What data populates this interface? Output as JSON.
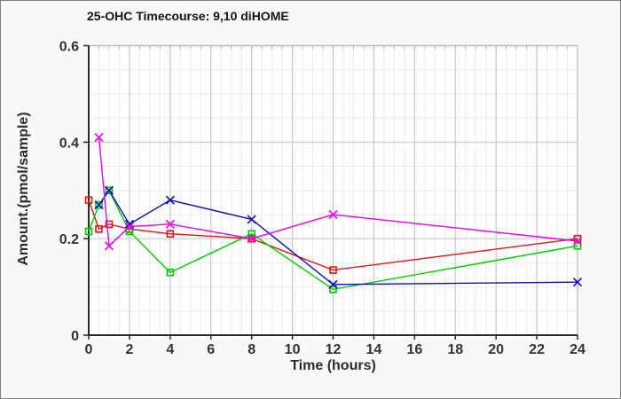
{
  "title": "25-OHC Timecourse: 9,10 diHOME",
  "chart_data": {
    "type": "line",
    "title": "25-OHC Timecourse: 9,10 diHOME",
    "xlabel": "Time (hours)",
    "ylabel": "Amount.(pmol/sample)",
    "xlim": [
      0,
      24
    ],
    "ylim": [
      0,
      0.6
    ],
    "x_tick_values": [
      0,
      2,
      4,
      6,
      8,
      10,
      12,
      14,
      16,
      18,
      20,
      22,
      24
    ],
    "x_tick_labels": [
      "0",
      "2",
      "4",
      "6",
      "8",
      "10",
      "12",
      "14",
      "16",
      "18",
      "20",
      "22",
      "24"
    ],
    "y_tick_values": [
      0,
      0.2,
      0.4,
      0.6
    ],
    "y_tick_labels": [
      "0",
      "0.2",
      "0.4",
      "0.6"
    ],
    "x_minor_step": 0.5,
    "y_minor_step": 0.05,
    "grid": "major and minor, light gray",
    "legend": "none",
    "series": [
      {
        "name": "red-square-series",
        "color": "#e01414",
        "marker": "square",
        "x": [
          0,
          0.5,
          1,
          2,
          4,
          8,
          12,
          24
        ],
        "y": [
          0.28,
          0.22,
          0.23,
          0.22,
          0.21,
          0.2,
          0.135,
          0.2
        ]
      },
      {
        "name": "green-square-series",
        "color": "#00cc00",
        "marker": "square",
        "x": [
          0,
          0.5,
          1,
          2,
          4,
          8,
          12,
          24
        ],
        "y": [
          0.215,
          0.27,
          0.3,
          0.215,
          0.13,
          0.21,
          0.095,
          0.185
        ]
      },
      {
        "name": "blue-x-series",
        "color": "#0f0fb4",
        "marker": "x",
        "x": [
          0.5,
          1,
          2,
          4,
          8,
          12,
          24
        ],
        "y": [
          0.27,
          0.3,
          0.23,
          0.28,
          0.24,
          0.105,
          0.11
        ]
      },
      {
        "name": "magenta-x-series",
        "color": "#ee00ee",
        "marker": "x",
        "x": [
          0.5,
          1,
          2,
          4,
          8,
          12,
          24
        ],
        "y": [
          0.41,
          0.185,
          0.225,
          0.23,
          0.2,
          0.25,
          0.195
        ]
      }
    ],
    "colors": {
      "axis": "#2a2a2a",
      "frame_light": "#b8b8b8",
      "grid_major": "#c9c9c9",
      "grid_minor": "#ececec",
      "plot_background": "#fdfdfd",
      "page_background": "#f8f8f8"
    }
  }
}
